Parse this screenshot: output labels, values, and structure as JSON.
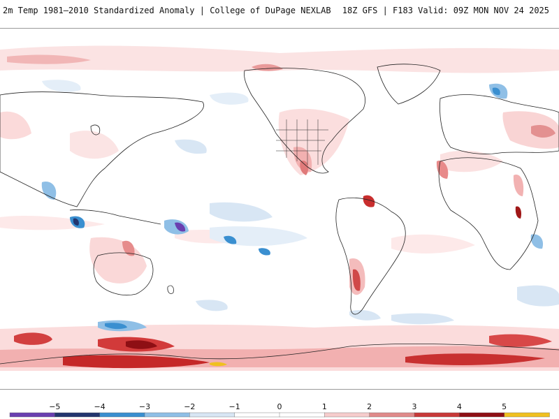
{
  "header": {
    "left_title": "2m Temp 1981–2010 Standardized Anomaly | College of DuPage NEXLAB",
    "right_title": "18Z GFS | F183 Valid: 09Z MON NOV 24 2025"
  },
  "colorbar": {
    "labels": [
      "−5",
      "−4",
      "−3",
      "−2",
      "−1",
      "0",
      "1",
      "2",
      "3",
      "4",
      "5"
    ],
    "colors": [
      "#6a3fb0",
      "#23356e",
      "#3a8fd0",
      "#8fbfe6",
      "#d8e6f4",
      "#ffffff",
      "#ffffff",
      "#f6cccc",
      "#e08a8a",
      "#c83838",
      "#8e0f14",
      "#f0c020"
    ]
  }
}
